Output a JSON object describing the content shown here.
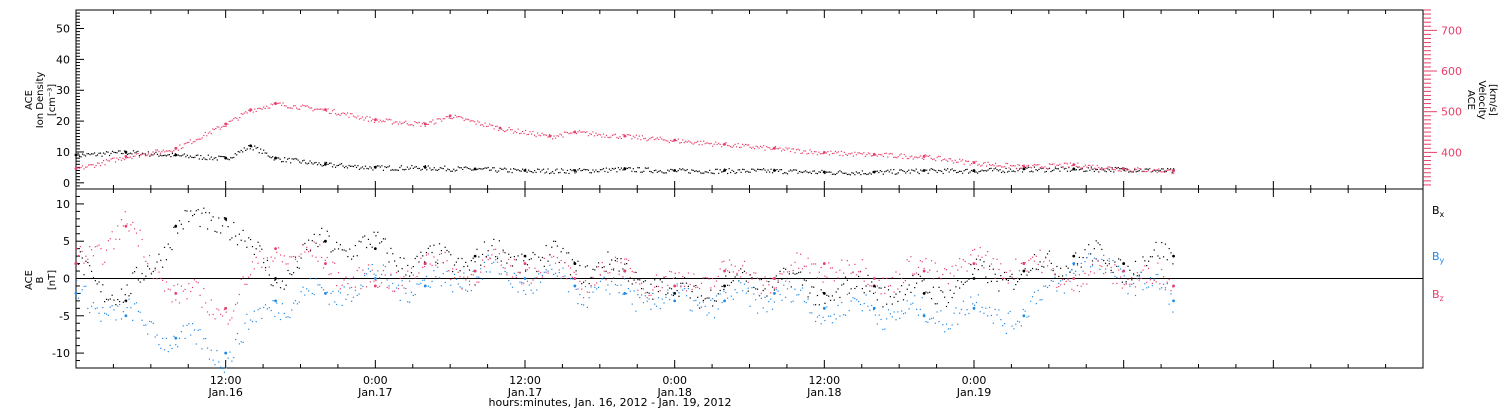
{
  "chart_data": [
    {
      "type": "scatter",
      "panel": "top",
      "ylabel_left": [
        "ACE",
        "Ion Density",
        "[cm⁻³]"
      ],
      "ylabel_right": [
        "ACE",
        "Velocity",
        "[km/s]"
      ],
      "x_range_hours": [
        0,
        108
      ],
      "left_ylim": [
        -2,
        56
      ],
      "left_ticks": [
        0,
        10,
        20,
        30,
        40,
        50
      ],
      "right_ylim": [
        310,
        750
      ],
      "right_ticks": [
        400,
        500,
        600,
        700
      ],
      "grid": false,
      "colors": {
        "density": "#000000",
        "velocity": "#e83e6b"
      },
      "series": [
        {
          "name": "Ion Density",
          "axis": "left",
          "x_hours": [
            0,
            4,
            8,
            12,
            14,
            16,
            20,
            24,
            28,
            32,
            36,
            40,
            44,
            48,
            52,
            56,
            60,
            64,
            68,
            72,
            76,
            80,
            84,
            88
          ],
          "y": [
            9,
            10,
            9,
            8,
            12,
            8,
            6,
            5,
            5,
            4.5,
            4,
            4,
            4.5,
            4,
            4,
            4,
            3.5,
            3.5,
            4,
            4,
            4.5,
            4.5,
            4.5,
            4
          ]
        },
        {
          "name": "Velocity",
          "axis": "right",
          "x_hours": [
            0,
            4,
            8,
            12,
            14,
            16,
            20,
            24,
            28,
            30,
            34,
            38,
            40,
            44,
            48,
            52,
            56,
            60,
            64,
            68,
            72,
            76,
            80,
            84,
            88
          ],
          "y": [
            360,
            390,
            410,
            470,
            505,
            520,
            505,
            480,
            470,
            490,
            460,
            440,
            450,
            440,
            430,
            420,
            410,
            400,
            395,
            390,
            375,
            365,
            370,
            360,
            355
          ]
        }
      ]
    },
    {
      "type": "scatter",
      "panel": "bottom",
      "ylabel_left": [
        "ACE",
        "B",
        "[nT]"
      ],
      "x_range_hours": [
        0,
        108
      ],
      "ylim": [
        -12,
        12
      ],
      "ticks": [
        -10,
        -5,
        0,
        5,
        10
      ],
      "zero_line": true,
      "grid": false,
      "legend_position": "right",
      "colors": {
        "Bx": "#000000",
        "By": "#1e88e5",
        "Bz": "#e83e6b"
      },
      "series": [
        {
          "name": "Bx",
          "x_hours": [
            0,
            4,
            8,
            12,
            16,
            20,
            24,
            28,
            32,
            36,
            40,
            44,
            48,
            52,
            56,
            60,
            64,
            68,
            72,
            76,
            80,
            84,
            88
          ],
          "y": [
            2,
            -3,
            7,
            8,
            0,
            5,
            4,
            2,
            3,
            3,
            2,
            1,
            -2,
            -1,
            0,
            -2,
            -1,
            -2,
            0,
            1,
            3,
            2,
            3
          ]
        },
        {
          "name": "By",
          "x_hours": [
            0,
            4,
            8,
            12,
            16,
            20,
            24,
            28,
            32,
            36,
            40,
            44,
            48,
            52,
            56,
            60,
            64,
            68,
            72,
            76,
            80,
            84,
            88
          ],
          "y": [
            -2,
            -5,
            -8,
            -10,
            -3,
            -2,
            0,
            -1,
            1,
            0,
            -1,
            -2,
            -3,
            -3,
            -2,
            -4,
            -4,
            -5,
            -4,
            -5,
            2,
            1,
            -3
          ]
        },
        {
          "name": "Bz",
          "x_hours": [
            0,
            4,
            8,
            12,
            16,
            20,
            24,
            28,
            32,
            36,
            40,
            44,
            48,
            52,
            56,
            60,
            64,
            68,
            72,
            76,
            80,
            84,
            88
          ],
          "y": [
            2,
            7,
            -2,
            -4,
            4,
            2,
            -1,
            2,
            1,
            2,
            0,
            1,
            -1,
            1,
            0,
            2,
            0,
            1,
            2,
            2,
            0,
            1,
            -1
          ]
        }
      ],
      "legend": [
        "Bx",
        "By",
        "Bz"
      ]
    }
  ],
  "x_axis": {
    "ticks": [
      {
        "hour": 12,
        "time": "12:00",
        "date": "Jan.16"
      },
      {
        "hour": 24,
        "time": "0:00",
        "date": "Jan.17"
      },
      {
        "hour": 36,
        "time": "12:00",
        "date": "Jan.17"
      },
      {
        "hour": 48,
        "time": "0:00",
        "date": "Jan.18"
      },
      {
        "hour": 60,
        "time": "12:00",
        "date": "Jan.18"
      },
      {
        "hour": 72,
        "time": "0:00",
        "date": "Jan.19"
      }
    ],
    "label": "hours:minutes, Jan. 16, 2012 - Jan. 19, 2012"
  }
}
